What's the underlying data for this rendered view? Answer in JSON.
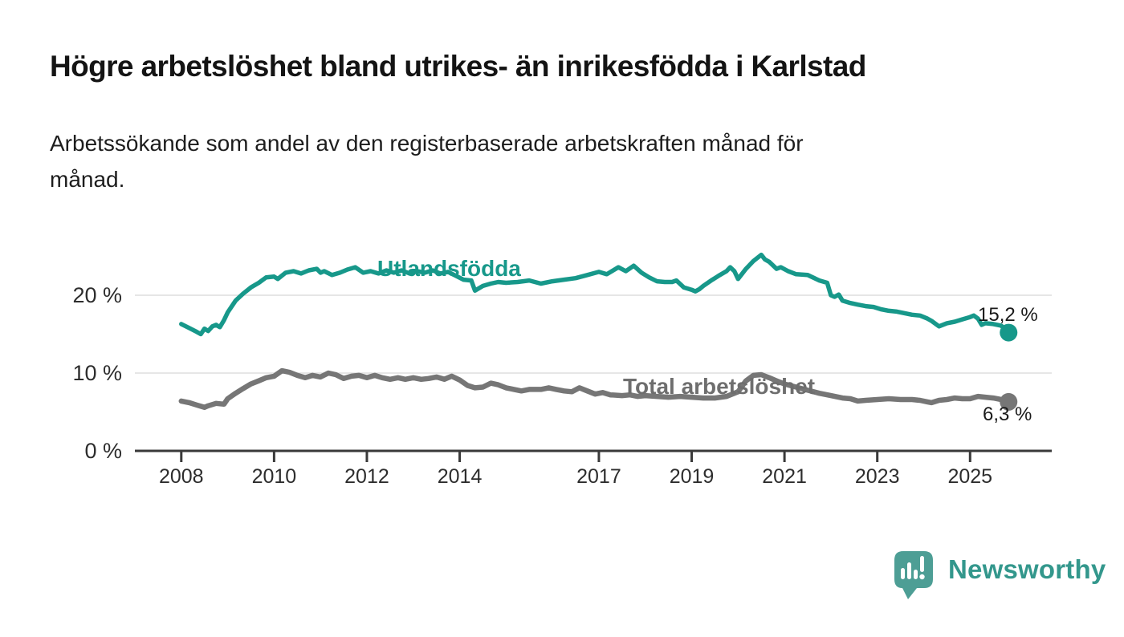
{
  "header": {
    "title": "Högre arbetslöshet bland utrikes- än inrikesfödda i Karlstad",
    "subtitle_lines": [
      "Arbetssökande som andel av den registerbaserade arbetskraften månad för",
      "månad."
    ]
  },
  "colors": {
    "teal_line": "#17988A",
    "gray_line": "#767676",
    "gray_label": "#6E6E6E",
    "value_label": "#1A1A1A",
    "axis": "#3A3A3A",
    "tick_text": "#2D2D2D",
    "gridline": "#DEDEDE",
    "logo_bubble": "#4D9E95",
    "logo_word": "#33978C",
    "background": "#FFFFFF"
  },
  "chart_data": {
    "type": "line",
    "title": "Arbetssökande som andel av den registerbaserade arbetskraften månad för månad",
    "xlabel": "",
    "ylabel": "%",
    "grid": "horizontal-only",
    "legend_position": "inline-labels-on-lines",
    "x_axis": {
      "range": [
        2007,
        2026.76
      ],
      "ticks": [
        2008,
        2010,
        2012,
        2014,
        2017,
        2019,
        2021,
        2023,
        2025
      ]
    },
    "y_axis": {
      "range": [
        0,
        27.84
      ],
      "unit": "%",
      "ticks": [
        {
          "value": 0,
          "label": "0 %"
        },
        {
          "value": 10,
          "label": "10 %"
        },
        {
          "value": 20,
          "label": "20 %"
        }
      ],
      "gridlines": [
        10,
        20
      ]
    },
    "series": [
      {
        "name": "Utlandsfödda",
        "color": "#17988A",
        "stroke_width": 5.5,
        "end_dot": {
          "x": 2025.83,
          "y": 15.2,
          "label": "15,2 %"
        },
        "points": [
          [
            2008,
            16.3
          ],
          [
            2008.17,
            15.8
          ],
          [
            2008.33,
            15.3
          ],
          [
            2008.42,
            15
          ],
          [
            2008.5,
            15.7
          ],
          [
            2008.58,
            15.4
          ],
          [
            2008.67,
            16
          ],
          [
            2008.75,
            16.2
          ],
          [
            2008.83,
            15.9
          ],
          [
            2008.92,
            16.8
          ],
          [
            2009,
            17.8
          ],
          [
            2009.17,
            19.3
          ],
          [
            2009.33,
            20.2
          ],
          [
            2009.5,
            21
          ],
          [
            2009.67,
            21.6
          ],
          [
            2009.83,
            22.3
          ],
          [
            2010,
            22.4
          ],
          [
            2010.08,
            22.1
          ],
          [
            2010.25,
            22.9
          ],
          [
            2010.42,
            23.1
          ],
          [
            2010.58,
            22.8
          ],
          [
            2010.75,
            23.2
          ],
          [
            2010.92,
            23.4
          ],
          [
            2011,
            22.9
          ],
          [
            2011.08,
            23.1
          ],
          [
            2011.25,
            22.6
          ],
          [
            2011.42,
            22.9
          ],
          [
            2011.58,
            23.3
          ],
          [
            2011.75,
            23.6
          ],
          [
            2011.92,
            22.9
          ],
          [
            2012.08,
            23.1
          ],
          [
            2012.25,
            22.8
          ],
          [
            2012.42,
            23.2
          ],
          [
            2012.58,
            22.9
          ],
          [
            2012.75,
            23.2
          ],
          [
            2012.92,
            22.8
          ],
          [
            2013.08,
            23.1
          ],
          [
            2013.25,
            22.9
          ],
          [
            2013.42,
            23.2
          ],
          [
            2013.58,
            22.8
          ],
          [
            2013.75,
            23
          ],
          [
            2013.92,
            22.5
          ],
          [
            2014.08,
            22
          ],
          [
            2014.25,
            21.9
          ],
          [
            2014.33,
            20.6
          ],
          [
            2014.5,
            21.2
          ],
          [
            2014.67,
            21.5
          ],
          [
            2014.83,
            21.7
          ],
          [
            2015,
            21.6
          ],
          [
            2015.25,
            21.7
          ],
          [
            2015.5,
            21.9
          ],
          [
            2015.75,
            21.5
          ],
          [
            2016,
            21.8
          ],
          [
            2016.25,
            22
          ],
          [
            2016.5,
            22.2
          ],
          [
            2016.75,
            22.6
          ],
          [
            2017,
            23
          ],
          [
            2017.17,
            22.7
          ],
          [
            2017.42,
            23.6
          ],
          [
            2017.58,
            23.1
          ],
          [
            2017.75,
            23.8
          ],
          [
            2017.92,
            22.9
          ],
          [
            2018.08,
            22.3
          ],
          [
            2018.25,
            21.8
          ],
          [
            2018.42,
            21.7
          ],
          [
            2018.58,
            21.7
          ],
          [
            2018.67,
            21.9
          ],
          [
            2018.83,
            21
          ],
          [
            2019,
            20.7
          ],
          [
            2019.08,
            20.5
          ],
          [
            2019.17,
            20.8
          ],
          [
            2019.25,
            21.2
          ],
          [
            2019.42,
            21.9
          ],
          [
            2019.58,
            22.5
          ],
          [
            2019.75,
            23.1
          ],
          [
            2019.83,
            23.6
          ],
          [
            2019.92,
            23.1
          ],
          [
            2020,
            22.1
          ],
          [
            2020.08,
            22.7
          ],
          [
            2020.17,
            23.4
          ],
          [
            2020.33,
            24.4
          ],
          [
            2020.5,
            25.2
          ],
          [
            2020.58,
            24.6
          ],
          [
            2020.67,
            24.3
          ],
          [
            2020.83,
            23.4
          ],
          [
            2020.92,
            23.6
          ],
          [
            2021.08,
            23.1
          ],
          [
            2021.25,
            22.7
          ],
          [
            2021.5,
            22.6
          ],
          [
            2021.75,
            21.9
          ],
          [
            2021.92,
            21.6
          ],
          [
            2022,
            20
          ],
          [
            2022.08,
            19.8
          ],
          [
            2022.17,
            20.1
          ],
          [
            2022.25,
            19.3
          ],
          [
            2022.42,
            19
          ],
          [
            2022.58,
            18.8
          ],
          [
            2022.75,
            18.6
          ],
          [
            2022.92,
            18.5
          ],
          [
            2023.08,
            18.2
          ],
          [
            2023.25,
            18
          ],
          [
            2023.42,
            17.9
          ],
          [
            2023.58,
            17.7
          ],
          [
            2023.75,
            17.5
          ],
          [
            2023.92,
            17.4
          ],
          [
            2024.08,
            17
          ],
          [
            2024.17,
            16.7
          ],
          [
            2024.33,
            16
          ],
          [
            2024.5,
            16.4
          ],
          [
            2024.67,
            16.6
          ],
          [
            2024.83,
            16.9
          ],
          [
            2025,
            17.2
          ],
          [
            2025.08,
            17.4
          ],
          [
            2025.17,
            17
          ],
          [
            2025.25,
            16.2
          ],
          [
            2025.33,
            16.4
          ],
          [
            2025.5,
            16.3
          ],
          [
            2025.67,
            16.1
          ],
          [
            2025.83,
            15.2
          ]
        ]
      },
      {
        "name": "Total arbetslöshet",
        "color": "#767676",
        "stroke_width": 6.5,
        "end_dot": {
          "x": 2025.83,
          "y": 6.3,
          "label": "6,3 %"
        },
        "points": [
          [
            2008,
            6.4
          ],
          [
            2008.17,
            6.2
          ],
          [
            2008.33,
            5.9
          ],
          [
            2008.5,
            5.6
          ],
          [
            2008.58,
            5.8
          ],
          [
            2008.75,
            6.1
          ],
          [
            2008.92,
            6
          ],
          [
            2009,
            6.7
          ],
          [
            2009.17,
            7.4
          ],
          [
            2009.33,
            8
          ],
          [
            2009.5,
            8.6
          ],
          [
            2009.67,
            9
          ],
          [
            2009.83,
            9.4
          ],
          [
            2010,
            9.6
          ],
          [
            2010.17,
            10.3
          ],
          [
            2010.33,
            10.1
          ],
          [
            2010.5,
            9.7
          ],
          [
            2010.67,
            9.4
          ],
          [
            2010.83,
            9.7
          ],
          [
            2011,
            9.5
          ],
          [
            2011.17,
            10
          ],
          [
            2011.33,
            9.8
          ],
          [
            2011.5,
            9.3
          ],
          [
            2011.67,
            9.6
          ],
          [
            2011.83,
            9.7
          ],
          [
            2012,
            9.4
          ],
          [
            2012.17,
            9.7
          ],
          [
            2012.33,
            9.4
          ],
          [
            2012.5,
            9.2
          ],
          [
            2012.67,
            9.4
          ],
          [
            2012.83,
            9.2
          ],
          [
            2013,
            9.4
          ],
          [
            2013.17,
            9.2
          ],
          [
            2013.33,
            9.3
          ],
          [
            2013.5,
            9.5
          ],
          [
            2013.67,
            9.2
          ],
          [
            2013.83,
            9.6
          ],
          [
            2014,
            9.1
          ],
          [
            2014.17,
            8.4
          ],
          [
            2014.33,
            8.1
          ],
          [
            2014.5,
            8.2
          ],
          [
            2014.67,
            8.7
          ],
          [
            2014.83,
            8.5
          ],
          [
            2015,
            8.1
          ],
          [
            2015.17,
            7.9
          ],
          [
            2015.33,
            7.7
          ],
          [
            2015.5,
            7.9
          ],
          [
            2015.75,
            7.9
          ],
          [
            2015.92,
            8.1
          ],
          [
            2016.08,
            7.9
          ],
          [
            2016.25,
            7.7
          ],
          [
            2016.42,
            7.6
          ],
          [
            2016.58,
            8.1
          ],
          [
            2016.75,
            7.7
          ],
          [
            2016.92,
            7.3
          ],
          [
            2017.08,
            7.5
          ],
          [
            2017.25,
            7.2
          ],
          [
            2017.5,
            7.1
          ],
          [
            2017.67,
            7.2
          ],
          [
            2017.83,
            7
          ],
          [
            2018,
            7.1
          ],
          [
            2018.25,
            7
          ],
          [
            2018.5,
            6.9
          ],
          [
            2018.75,
            7
          ],
          [
            2019,
            6.9
          ],
          [
            2019.25,
            6.8
          ],
          [
            2019.5,
            6.8
          ],
          [
            2019.75,
            7
          ],
          [
            2020,
            7.6
          ],
          [
            2020.17,
            9
          ],
          [
            2020.33,
            9.7
          ],
          [
            2020.5,
            9.8
          ],
          [
            2020.67,
            9.4
          ],
          [
            2020.83,
            9
          ],
          [
            2021,
            8.6
          ],
          [
            2021.25,
            8.2
          ],
          [
            2021.5,
            7.8
          ],
          [
            2021.75,
            7.4
          ],
          [
            2022,
            7.1
          ],
          [
            2022.25,
            6.8
          ],
          [
            2022.42,
            6.7
          ],
          [
            2022.58,
            6.4
          ],
          [
            2022.75,
            6.5
          ],
          [
            2023,
            6.6
          ],
          [
            2023.25,
            6.7
          ],
          [
            2023.5,
            6.6
          ],
          [
            2023.75,
            6.6
          ],
          [
            2023.92,
            6.5
          ],
          [
            2024.08,
            6.3
          ],
          [
            2024.17,
            6.2
          ],
          [
            2024.33,
            6.5
          ],
          [
            2024.5,
            6.6
          ],
          [
            2024.67,
            6.8
          ],
          [
            2024.83,
            6.7
          ],
          [
            2025,
            6.7
          ],
          [
            2025.17,
            7
          ],
          [
            2025.33,
            6.9
          ],
          [
            2025.5,
            6.8
          ],
          [
            2025.67,
            6.6
          ],
          [
            2025.83,
            6.3
          ]
        ]
      }
    ]
  },
  "footer": {
    "brand": "Newsworthy"
  }
}
